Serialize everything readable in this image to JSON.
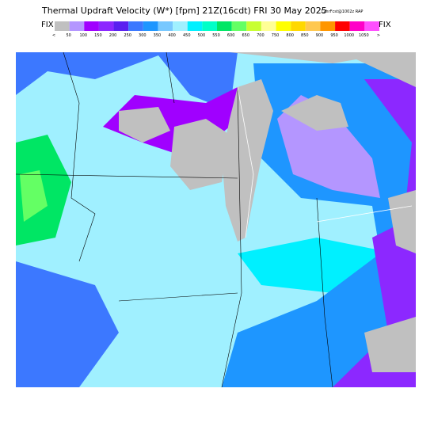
{
  "header": {
    "title": "Thermal Updraft Velocity (W*) [fpm] 21Z(16cdt) FRI 30 May 2025",
    "forecast": "12hrFcst@1002z RAP",
    "left_label": "FIX",
    "right_label": "FIX"
  },
  "colorbar": {
    "labels": [
      "<",
      "50",
      "100",
      "150",
      "200",
      "250",
      "300",
      "350",
      "400",
      "450",
      "500",
      "550",
      "600",
      "650",
      "700",
      "750",
      "800",
      "850",
      "900",
      "950",
      "1000",
      "1050",
      ">"
    ],
    "colors": [
      "#c0c0c0",
      "#b496ff",
      "#a000ff",
      "#8c28ff",
      "#5a20f0",
      "#3c78ff",
      "#1e96ff",
      "#78c8ff",
      "#a0f0ff",
      "#00f0ff",
      "#00ffc8",
      "#00e664",
      "#64ff64",
      "#c8ff32",
      "#ffff96",
      "#ffff00",
      "#ffd800",
      "#ffc850",
      "#ff9600",
      "#ff0000",
      "#ff00c8",
      "#ff50ff"
    ]
  }
}
